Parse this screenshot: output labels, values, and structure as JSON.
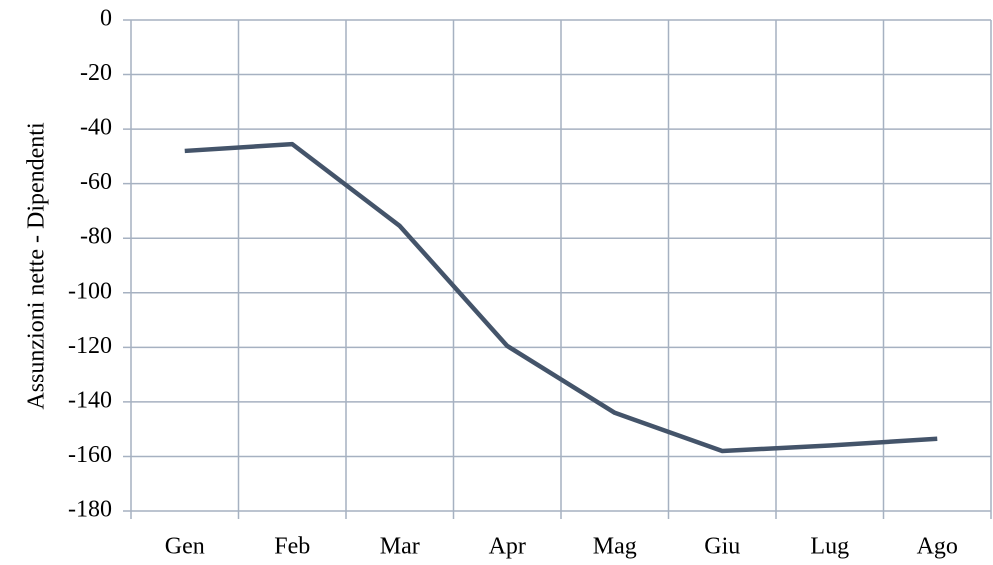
{
  "chart_data": {
    "type": "line",
    "y_label": "Assunzioni nette - Dipendenti",
    "categories": [
      "Gen",
      "Feb",
      "Mar",
      "Apr",
      "Mag",
      "Giu",
      "Lug",
      "Ago"
    ],
    "series": [
      {
        "color": "#44546a",
        "values": [
          -48,
          -45.5,
          -75.5,
          -119.5,
          -144,
          -158,
          -156,
          -153.5
        ]
      }
    ],
    "ylim": [
      -180,
      0
    ],
    "yticks": [
      -180,
      -160,
      -140,
      -120,
      -100,
      -80,
      -60,
      -40,
      -20,
      0
    ],
    "grid": true
  }
}
